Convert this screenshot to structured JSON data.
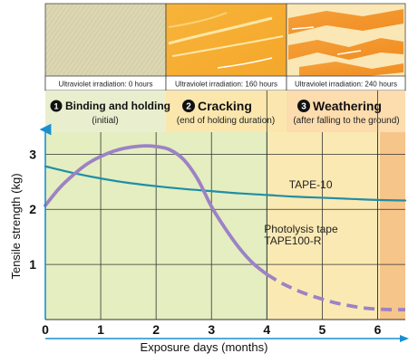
{
  "colors": {
    "stage1": "#e4eec0",
    "stage2": "#fbe9b3",
    "stage3": "#fde0b4",
    "stage3_end": "#f6c58a",
    "header_band": "#e9efce",
    "tape10": "#1f8ea6",
    "tape100r": "#9d82c4",
    "axis": "#1a8fd0",
    "grid": "#333333"
  },
  "photos": [
    {
      "caption": "Ultraviolet irradiation: 0 hours"
    },
    {
      "caption": "Ultraviolet irradiation: 160 hours"
    },
    {
      "caption": "Ultraviolet irradiation: 240 hours"
    }
  ],
  "stages": [
    {
      "number": "1",
      "title": "Binding and holding",
      "subtitle": "(initial)"
    },
    {
      "number": "2",
      "title": "Cracking",
      "subtitle": "(end of holding duration)"
    },
    {
      "number": "3",
      "title": "Weathering",
      "subtitle": "(after falling to the ground)"
    }
  ],
  "chart_data": {
    "type": "line",
    "xlabel": "Exposure days (months)",
    "ylabel": "Tensile strength (kg)",
    "xlim": [
      0,
      6.5
    ],
    "ylim": [
      0,
      3.4
    ],
    "x_ticks": [
      "0",
      "1",
      "2",
      "3",
      "4",
      "5",
      "6"
    ],
    "y_ticks": [
      "1",
      "2",
      "3"
    ],
    "grid": true,
    "stage_boundaries": [
      4,
      6
    ],
    "series": [
      {
        "name": "TAPE-10",
        "style": "solid",
        "points": [
          [
            0,
            2.78
          ],
          [
            0.5,
            2.66
          ],
          [
            1,
            2.56
          ],
          [
            1.5,
            2.48
          ],
          [
            2,
            2.42
          ],
          [
            2.5,
            2.37
          ],
          [
            3,
            2.33
          ],
          [
            3.5,
            2.29
          ],
          [
            4,
            2.26
          ],
          [
            4.5,
            2.23
          ],
          [
            5,
            2.21
          ],
          [
            5.5,
            2.19
          ],
          [
            6,
            2.17
          ],
          [
            6.5,
            2.16
          ]
        ]
      },
      {
        "name": "Photolysis tape\nTAPE100-R",
        "style": "solid",
        "points": [
          [
            0,
            2.07
          ],
          [
            0.25,
            2.38
          ],
          [
            0.5,
            2.62
          ],
          [
            0.75,
            2.82
          ],
          [
            1,
            2.96
          ],
          [
            1.25,
            3.06
          ],
          [
            1.5,
            3.12
          ],
          [
            1.75,
            3.15
          ],
          [
            2,
            3.14
          ],
          [
            2.25,
            3.08
          ],
          [
            2.5,
            2.9
          ],
          [
            2.75,
            2.55
          ],
          [
            3,
            2.05
          ],
          [
            3.25,
            1.65
          ],
          [
            3.5,
            1.3
          ],
          [
            3.75,
            1.02
          ],
          [
            4,
            0.82
          ]
        ]
      },
      {
        "name": "Photolysis tape (dashed)",
        "style": "dashed",
        "points": [
          [
            4,
            0.82
          ],
          [
            4.25,
            0.67
          ],
          [
            4.5,
            0.55
          ],
          [
            4.75,
            0.45
          ],
          [
            5,
            0.37
          ],
          [
            5.25,
            0.3
          ],
          [
            5.5,
            0.25
          ],
          [
            5.75,
            0.21
          ],
          [
            6,
            0.19
          ],
          [
            6.25,
            0.18
          ],
          [
            6.5,
            0.18
          ]
        ]
      }
    ],
    "series_labels": [
      {
        "text": "TAPE-10",
        "x": 4.4,
        "y": 2.38
      },
      {
        "text": "Photolysis tape",
        "x": 3.95,
        "y": 1.58
      },
      {
        "text": "TAPE100-R",
        "x": 3.95,
        "y": 1.36
      }
    ]
  }
}
